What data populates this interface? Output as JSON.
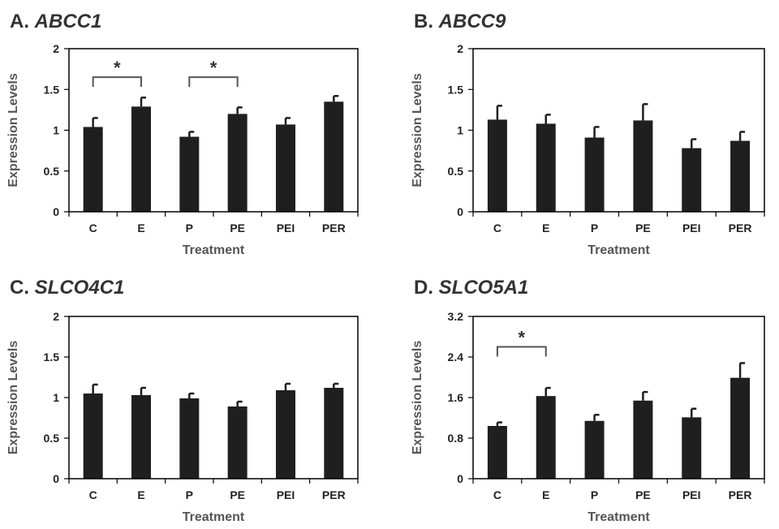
{
  "chart_data": [
    {
      "type": "bar",
      "panel_label": "A.",
      "gene": "ABCC1",
      "categories": [
        "C",
        "E",
        "P",
        "PE",
        "PEI",
        "PER"
      ],
      "values": [
        1.04,
        1.29,
        0.92,
        1.2,
        1.07,
        1.35
      ],
      "errors": [
        0.11,
        0.11,
        0.06,
        0.08,
        0.08,
        0.07
      ],
      "ylim": [
        0,
        2
      ],
      "yticks": [
        0,
        0.5,
        1,
        1.5,
        2
      ],
      "ytick_labels": [
        "0",
        "0.5",
        "1",
        "1.5",
        "2"
      ],
      "xlabel": "Treatment",
      "ylabel": "Expression Levels",
      "significance": [
        {
          "from": 0,
          "to": 1,
          "level": 1.65,
          "label": "*"
        },
        {
          "from": 2,
          "to": 3,
          "level": 1.65,
          "label": "*"
        }
      ]
    },
    {
      "type": "bar",
      "panel_label": "B.",
      "gene": "ABCC9",
      "categories": [
        "C",
        "E",
        "P",
        "PE",
        "PEI",
        "PER"
      ],
      "values": [
        1.13,
        1.08,
        0.91,
        1.12,
        0.78,
        0.87
      ],
      "errors": [
        0.17,
        0.11,
        0.13,
        0.2,
        0.11,
        0.11
      ],
      "ylim": [
        0,
        2
      ],
      "yticks": [
        0,
        0.5,
        1,
        1.5,
        2
      ],
      "ytick_labels": [
        "0",
        "0.5",
        "1",
        "1.5",
        "2"
      ],
      "xlabel": "Treatment",
      "ylabel": "Expression Levels",
      "significance": []
    },
    {
      "type": "bar",
      "panel_label": "C.",
      "gene": "SLCO4C1",
      "categories": [
        "C",
        "E",
        "P",
        "PE",
        "PEI",
        "PER"
      ],
      "values": [
        1.05,
        1.03,
        0.99,
        0.89,
        1.09,
        1.12
      ],
      "errors": [
        0.11,
        0.09,
        0.06,
        0.06,
        0.08,
        0.05
      ],
      "ylim": [
        0,
        2
      ],
      "yticks": [
        0,
        0.5,
        1,
        1.5,
        2
      ],
      "ytick_labels": [
        "0",
        "0.5",
        "1",
        "1.5",
        "2"
      ],
      "xlabel": "Treatment",
      "ylabel": "Expression Levels",
      "significance": []
    },
    {
      "type": "bar",
      "panel_label": "D.",
      "gene": "SLCO5A1",
      "categories": [
        "C",
        "E",
        "P",
        "PE",
        "PEI",
        "PER"
      ],
      "values": [
        1.04,
        1.63,
        1.14,
        1.54,
        1.21,
        1.99
      ],
      "errors": [
        0.07,
        0.16,
        0.12,
        0.17,
        0.17,
        0.29
      ],
      "ylim": [
        0,
        3.2
      ],
      "yticks": [
        0,
        0.8,
        1.6,
        2.4,
        3.2
      ],
      "ytick_labels": [
        "0",
        "0.8",
        "1.6",
        "2.4",
        "3.2"
      ],
      "xlabel": "Treatment",
      "ylabel": "Expression Levels",
      "significance": [
        {
          "from": 0,
          "to": 1,
          "level": 2.6,
          "label": "*"
        }
      ]
    }
  ]
}
